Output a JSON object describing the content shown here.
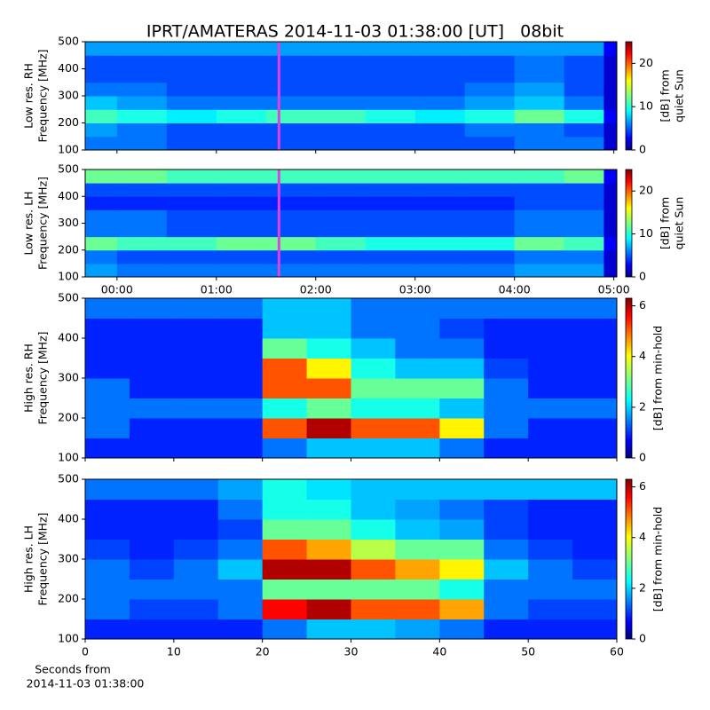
{
  "title": "IPRT/AMATERAS 2014-11-03 01:38:00 [UT]   08bit",
  "xlabel": [
    "Seconds from",
    "2014-11-03 01:38:00"
  ],
  "chart_data": [
    {
      "type": "heatmap",
      "ylabel": [
        "Low res. RH",
        "Frequency [MHz]"
      ],
      "colormap": "jet",
      "xlim": [
        -0.32,
        5.03
      ],
      "xticks": [
        {
          "value": 0,
          "label": "00:00"
        },
        {
          "value": 1,
          "label": "01:00"
        },
        {
          "value": 2,
          "label": "02:00"
        },
        {
          "value": 3,
          "label": "03:00"
        },
        {
          "value": 4,
          "label": "04:00"
        },
        {
          "value": 5,
          "label": "05:00"
        }
      ],
      "xticklabels": false,
      "ylim": [
        100,
        500
      ],
      "yticks": [
        100,
        200,
        300,
        400,
        500
      ],
      "xbins": [
        -0.32,
        0,
        0.5,
        1,
        1.5,
        2,
        2.5,
        3,
        3.5,
        4,
        4.5,
        4.9,
        5.03
      ],
      "ybins": [
        100,
        150,
        200,
        250,
        300,
        350,
        400,
        450,
        500
      ],
      "z": [
        [
          6,
          6,
          5,
          5,
          5,
          5,
          5,
          5,
          5,
          6,
          6,
          2
        ],
        [
          7,
          6,
          5,
          5,
          5,
          5,
          5,
          5,
          6,
          6,
          5,
          2
        ],
        [
          11,
          10,
          9,
          10,
          11,
          11,
          10,
          9,
          10,
          12,
          10,
          3
        ],
        [
          8,
          7,
          6,
          6,
          6,
          6,
          6,
          6,
          7,
          8,
          6,
          2
        ],
        [
          6,
          6,
          5,
          5,
          5,
          5,
          5,
          5,
          6,
          7,
          5,
          2
        ],
        [
          5,
          5,
          5,
          5,
          5,
          5,
          5,
          5,
          5,
          6,
          5,
          2
        ],
        [
          5,
          5,
          5,
          5,
          5,
          5,
          5,
          5,
          5,
          6,
          5,
          2
        ],
        [
          7,
          7,
          7,
          7,
          7,
          7,
          7,
          7,
          7,
          7,
          7,
          3
        ]
      ],
      "clim": [
        0,
        25
      ],
      "cticks": [
        0,
        10,
        20
      ],
      "colorbar_label": [
        "[dB] from",
        "quiet Sun"
      ],
      "marker_x": 1.63,
      "marker_color": "#e040e0"
    },
    {
      "type": "heatmap",
      "ylabel": [
        "Low res. LH",
        "Frequency [MHz]"
      ],
      "colormap": "jet",
      "xlim": [
        -0.32,
        5.03
      ],
      "xticks": [
        {
          "value": 0,
          "label": "00:00"
        },
        {
          "value": 1,
          "label": "01:00"
        },
        {
          "value": 2,
          "label": "02:00"
        },
        {
          "value": 3,
          "label": "03:00"
        },
        {
          "value": 4,
          "label": "04:00"
        },
        {
          "value": 5,
          "label": "05:00"
        }
      ],
      "xticklabels": true,
      "ylim": [
        100,
        500
      ],
      "yticks": [
        100,
        200,
        300,
        400,
        500
      ],
      "xbins": [
        -0.32,
        0,
        0.5,
        1,
        1.5,
        2,
        2.5,
        3,
        3.5,
        4,
        4.5,
        4.9,
        5.03
      ],
      "ybins": [
        100,
        150,
        200,
        250,
        300,
        350,
        400,
        450,
        500
      ],
      "z": [
        [
          7,
          6,
          6,
          6,
          6,
          6,
          6,
          6,
          6,
          7,
          7,
          2
        ],
        [
          6,
          5,
          5,
          5,
          5,
          5,
          5,
          5,
          5,
          6,
          6,
          2
        ],
        [
          12,
          11,
          11,
          12,
          12,
          11,
          10,
          10,
          10,
          12,
          11,
          3
        ],
        [
          6,
          6,
          5,
          5,
          5,
          5,
          5,
          5,
          5,
          6,
          6,
          2
        ],
        [
          6,
          6,
          5,
          5,
          5,
          5,
          5,
          5,
          5,
          6,
          6,
          2
        ],
        [
          4,
          4,
          4,
          4,
          4,
          4,
          4,
          4,
          4,
          5,
          5,
          2
        ],
        [
          5,
          5,
          5,
          5,
          5,
          5,
          5,
          5,
          5,
          5,
          5,
          2
        ],
        [
          12,
          12,
          11,
          11,
          11,
          11,
          11,
          11,
          11,
          11,
          12,
          3
        ]
      ],
      "clim": [
        0,
        25
      ],
      "cticks": [
        0,
        10,
        20
      ],
      "colorbar_label": [
        "[dB] from",
        "quiet Sun"
      ],
      "marker_x": 1.63,
      "marker_color": "#e040e0"
    },
    {
      "type": "heatmap",
      "ylabel": [
        "High res. RH",
        "Frequency [MHz]"
      ],
      "colormap": "jet",
      "xlim": [
        0,
        60
      ],
      "xticks": [
        0,
        10,
        20,
        30,
        40,
        50,
        60
      ],
      "xticklabels": false,
      "ylim": [
        100,
        500
      ],
      "yticks": [
        100,
        200,
        300,
        400,
        500
      ],
      "xbins": [
        0,
        5,
        10,
        15,
        20,
        25,
        30,
        35,
        40,
        45,
        50,
        55,
        60
      ],
      "ybins": [
        100,
        150,
        200,
        250,
        300,
        350,
        400,
        450,
        500
      ],
      "z": [
        [
          1,
          1,
          1,
          1,
          1.5,
          2,
          2,
          2,
          1.5,
          1,
          1,
          1
        ],
        [
          1.5,
          1,
          1,
          1,
          5,
          6,
          5,
          5,
          4,
          1.5,
          1,
          1
        ],
        [
          1.5,
          1.5,
          1.5,
          1.5,
          2.5,
          3,
          2.5,
          2.5,
          2,
          1.5,
          1.5,
          1.5
        ],
        [
          1.5,
          1,
          1,
          1,
          5,
          5,
          3,
          3,
          3,
          1.5,
          1,
          1
        ],
        [
          1,
          1,
          1,
          1,
          5,
          4,
          2.5,
          2,
          2,
          1.2,
          1,
          1
        ],
        [
          1,
          1,
          1,
          1,
          3,
          2.5,
          2,
          1.5,
          1.5,
          1,
          1,
          1
        ],
        [
          1,
          1,
          1,
          1,
          2,
          2,
          1.5,
          1.5,
          1.2,
          1,
          1,
          1
        ],
        [
          1.5,
          1.5,
          1.5,
          1.5,
          2,
          2,
          1.5,
          1.5,
          1.5,
          1.5,
          1.5,
          1.5
        ]
      ],
      "clim": [
        0,
        6.3
      ],
      "cticks": [
        0,
        2,
        4,
        6
      ],
      "colorbar_label": [
        "[dB] from min-hold"
      ]
    },
    {
      "type": "heatmap",
      "ylabel": [
        "High res. LH",
        "Frequency [MHz]"
      ],
      "colormap": "jet",
      "xlim": [
        0,
        60
      ],
      "xticks": [
        0,
        10,
        20,
        30,
        40,
        50,
        60
      ],
      "xticklabels": true,
      "ylim": [
        100,
        500
      ],
      "yticks": [
        100,
        200,
        300,
        400,
        500
      ],
      "xbins": [
        0,
        5,
        10,
        15,
        20,
        25,
        30,
        35,
        40,
        45,
        50,
        55,
        60
      ],
      "ybins": [
        100,
        150,
        200,
        250,
        300,
        350,
        400,
        450,
        500
      ],
      "z": [
        [
          1,
          1,
          1,
          1,
          1.5,
          2,
          2,
          1.8,
          1.5,
          1,
          1,
          1
        ],
        [
          1.5,
          1.2,
          1.2,
          1.5,
          5.5,
          6,
          5,
          5,
          4.5,
          1.5,
          1.2,
          1.2
        ],
        [
          1.5,
          1.5,
          1.5,
          1.5,
          3,
          3,
          3,
          3,
          2.5,
          1.5,
          1.5,
          1.5
        ],
        [
          1.5,
          1.2,
          1.5,
          2,
          6,
          6,
          5,
          4.5,
          4,
          2,
          1.5,
          1.2
        ],
        [
          1.2,
          1,
          1.2,
          1.5,
          5,
          4.5,
          3.5,
          3,
          3,
          1.5,
          1.2,
          1
        ],
        [
          1,
          1,
          1,
          1.2,
          3,
          3,
          2.5,
          2,
          1.8,
          1.2,
          1,
          1
        ],
        [
          1,
          1,
          1,
          1.5,
          2.5,
          2.5,
          2,
          1.8,
          1.5,
          1.2,
          1,
          1
        ],
        [
          1.5,
          1.5,
          1.5,
          1.8,
          2.5,
          2.2,
          2,
          2,
          2,
          2,
          2,
          2
        ]
      ],
      "clim": [
        0,
        6.3
      ],
      "cticks": [
        0,
        2,
        4,
        6
      ],
      "colorbar_label": [
        "[dB] from min-hold"
      ]
    }
  ]
}
